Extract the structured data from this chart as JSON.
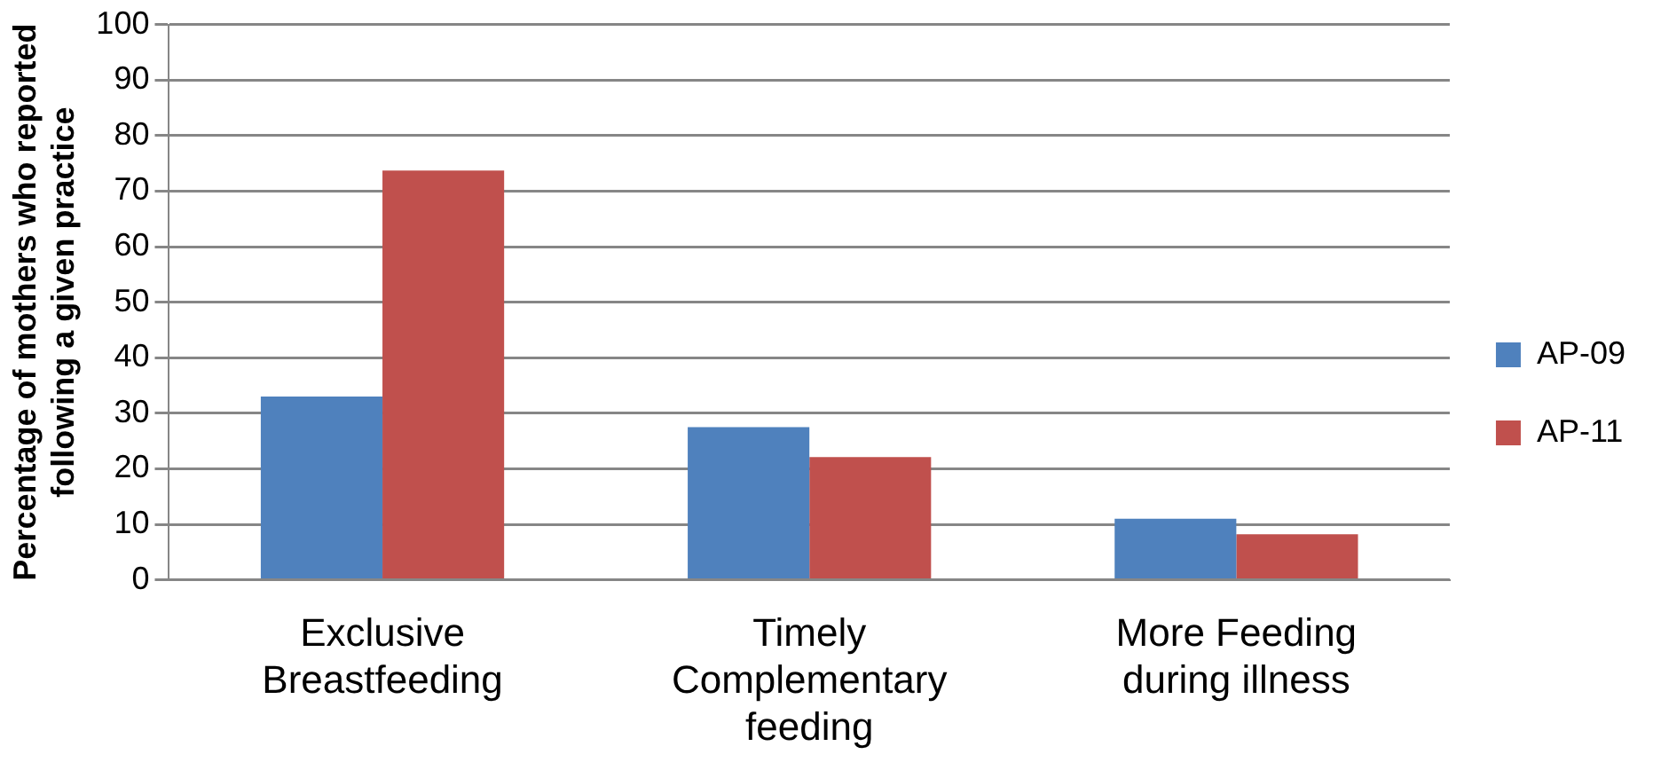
{
  "chart_data": {
    "type": "bar",
    "ylabel": "Percentage of mothers who reported following a given practice",
    "categories": [
      "Exclusive Breastfeeding",
      "Timely Complementary feeding",
      "More Feeding during illness"
    ],
    "series": [
      {
        "name": "AP-09",
        "color": "#4f81bd",
        "values": [
          33,
          27.5,
          11
        ]
      },
      {
        "name": "AP-11",
        "color": "#c0504d",
        "values": [
          73.7,
          22.1,
          8.2
        ]
      }
    ],
    "ylim": [
      0,
      100
    ],
    "yticks": [
      0,
      10,
      20,
      30,
      40,
      50,
      60,
      70,
      80,
      90,
      100
    ],
    "grid": "y",
    "legend": "right"
  }
}
